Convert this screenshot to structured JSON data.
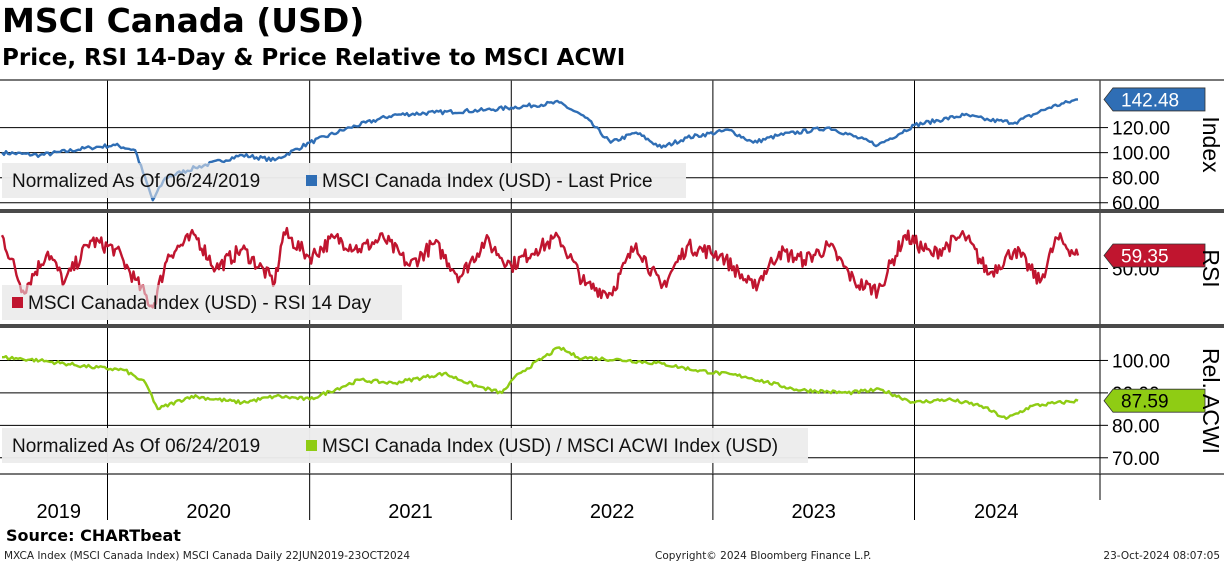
{
  "title": "MSCI Canada (USD)",
  "subtitle": "Price, RSI 14-Day & Price Relative to MSCI ACWI",
  "source": "Source: CHARTbeat",
  "footer": {
    "left": "MXCA Index (MSCI Canada Index) MSCI Canada  Daily 22JUN2019-23OCT2024",
    "center": "Copyright© 2024 Bloomberg Finance L.P.",
    "right": "23-Oct-2024 08:07:05"
  },
  "colors": {
    "price": "#2f6eb5",
    "rsi": "#c0152f",
    "relative": "#8fcc14",
    "background": "#ffffff",
    "grid": "#000000"
  },
  "chart_data": [
    {
      "type": "line",
      "panel": "price",
      "legend_note": "Normalized As Of 06/24/2019",
      "axis_label": "Index",
      "x_categories": [
        "2019",
        "2020",
        "2021",
        "2022",
        "2023",
        "2024"
      ],
      "yticks": [
        "60.00",
        "80.00",
        "100.00",
        "120.00"
      ],
      "ylim": [
        55,
        158
      ],
      "last_value_label": "142.48",
      "series": [
        {
          "name": "MSCI Canada Index (USD) - Last Price",
          "x": [
            "2019-06-24",
            "2019-09-01",
            "2019-12-01",
            "2020-01-15",
            "2020-02-20",
            "2020-03-23",
            "2020-04-15",
            "2020-06-08",
            "2020-09-01",
            "2020-10-30",
            "2021-01-01",
            "2021-03-15",
            "2021-06-01",
            "2021-08-15",
            "2021-11-15",
            "2022-01-01",
            "2022-03-29",
            "2022-05-15",
            "2022-06-30",
            "2022-08-15",
            "2022-09-30",
            "2022-11-15",
            "2023-01-31",
            "2023-03-15",
            "2023-05-01",
            "2023-07-31",
            "2023-10-27",
            "2024-01-01",
            "2024-03-31",
            "2024-05-15",
            "2024-07-01",
            "2024-09-01",
            "2024-10-23"
          ],
          "y": [
            100,
            98,
            104,
            106,
            102,
            62,
            80,
            88,
            98,
            94,
            108,
            120,
            130,
            132,
            134,
            136,
            140,
            128,
            108,
            116,
            104,
            112,
            118,
            108,
            114,
            120,
            106,
            122,
            130,
            126,
            124,
            136,
            142.48
          ]
        }
      ]
    },
    {
      "type": "line",
      "panel": "rsi",
      "axis_label": "RSI",
      "yticks": [
        "50.00"
      ],
      "ylim": [
        10,
        90
      ],
      "last_value_label": "59.35",
      "series": [
        {
          "name": "MSCI Canada Index (USD) - RSI 14 Day",
          "x": [
            "2019-06-24",
            "2019-08-01",
            "2019-09-15",
            "2019-10-15",
            "2019-12-01",
            "2020-01-15",
            "2020-02-20",
            "2020-03-23",
            "2020-04-20",
            "2020-06-08",
            "2020-07-15",
            "2020-09-01",
            "2020-10-30",
            "2020-11-15",
            "2021-01-01",
            "2021-02-15",
            "2021-04-01",
            "2021-05-15",
            "2021-07-01",
            "2021-08-15",
            "2021-09-30",
            "2021-11-15",
            "2022-01-01",
            "2022-02-15",
            "2022-03-29",
            "2022-05-15",
            "2022-06-30",
            "2022-08-15",
            "2022-09-30",
            "2022-11-15",
            "2023-01-15",
            "2023-03-15",
            "2023-05-01",
            "2023-06-15",
            "2023-07-31",
            "2023-09-15",
            "2023-10-27",
            "2023-12-15",
            "2024-02-01",
            "2024-03-31",
            "2024-05-15",
            "2024-07-01",
            "2024-08-15",
            "2024-09-15",
            "2024-10-23"
          ],
          "y": [
            74,
            34,
            62,
            40,
            70,
            64,
            42,
            22,
            60,
            74,
            50,
            64,
            40,
            76,
            58,
            72,
            64,
            72,
            52,
            68,
            44,
            70,
            52,
            64,
            72,
            38,
            32,
            68,
            36,
            66,
            60,
            36,
            62,
            56,
            66,
            40,
            34,
            74,
            60,
            74,
            46,
            64,
            40,
            72,
            59.35
          ]
        }
      ]
    },
    {
      "type": "line",
      "panel": "relative",
      "legend_note": "Normalized As Of 06/24/2019",
      "axis_label": "Rel. ACWI",
      "yticks": [
        "70.00",
        "80.00",
        "90.00",
        "100.00"
      ],
      "ylim": [
        65,
        110
      ],
      "last_value_label": "87.59",
      "series": [
        {
          "name": "MSCI Canada Index (USD) / MSCI ACWI Index (USD)",
          "x": [
            "2019-06-24",
            "2019-09-01",
            "2019-12-01",
            "2020-02-01",
            "2020-03-10",
            "2020-04-01",
            "2020-06-01",
            "2020-09-01",
            "2020-11-01",
            "2021-01-01",
            "2021-04-01",
            "2021-06-01",
            "2021-09-01",
            "2021-11-01",
            "2021-12-15",
            "2022-01-15",
            "2022-03-29",
            "2022-05-01",
            "2022-08-01",
            "2022-10-01",
            "2022-12-01",
            "2023-03-01",
            "2023-06-01",
            "2023-09-01",
            "2023-11-01",
            "2024-01-01",
            "2024-03-01",
            "2024-05-01",
            "2024-06-15",
            "2024-08-01",
            "2024-10-23"
          ],
          "y": [
            101,
            100,
            98,
            97,
            93,
            85,
            89,
            87,
            89,
            88,
            94,
            93,
            96,
            92,
            90,
            96,
            104,
            101,
            100,
            99,
            97,
            95,
            91,
            90,
            91,
            87,
            88,
            86,
            82,
            86,
            87.59
          ]
        }
      ]
    }
  ]
}
